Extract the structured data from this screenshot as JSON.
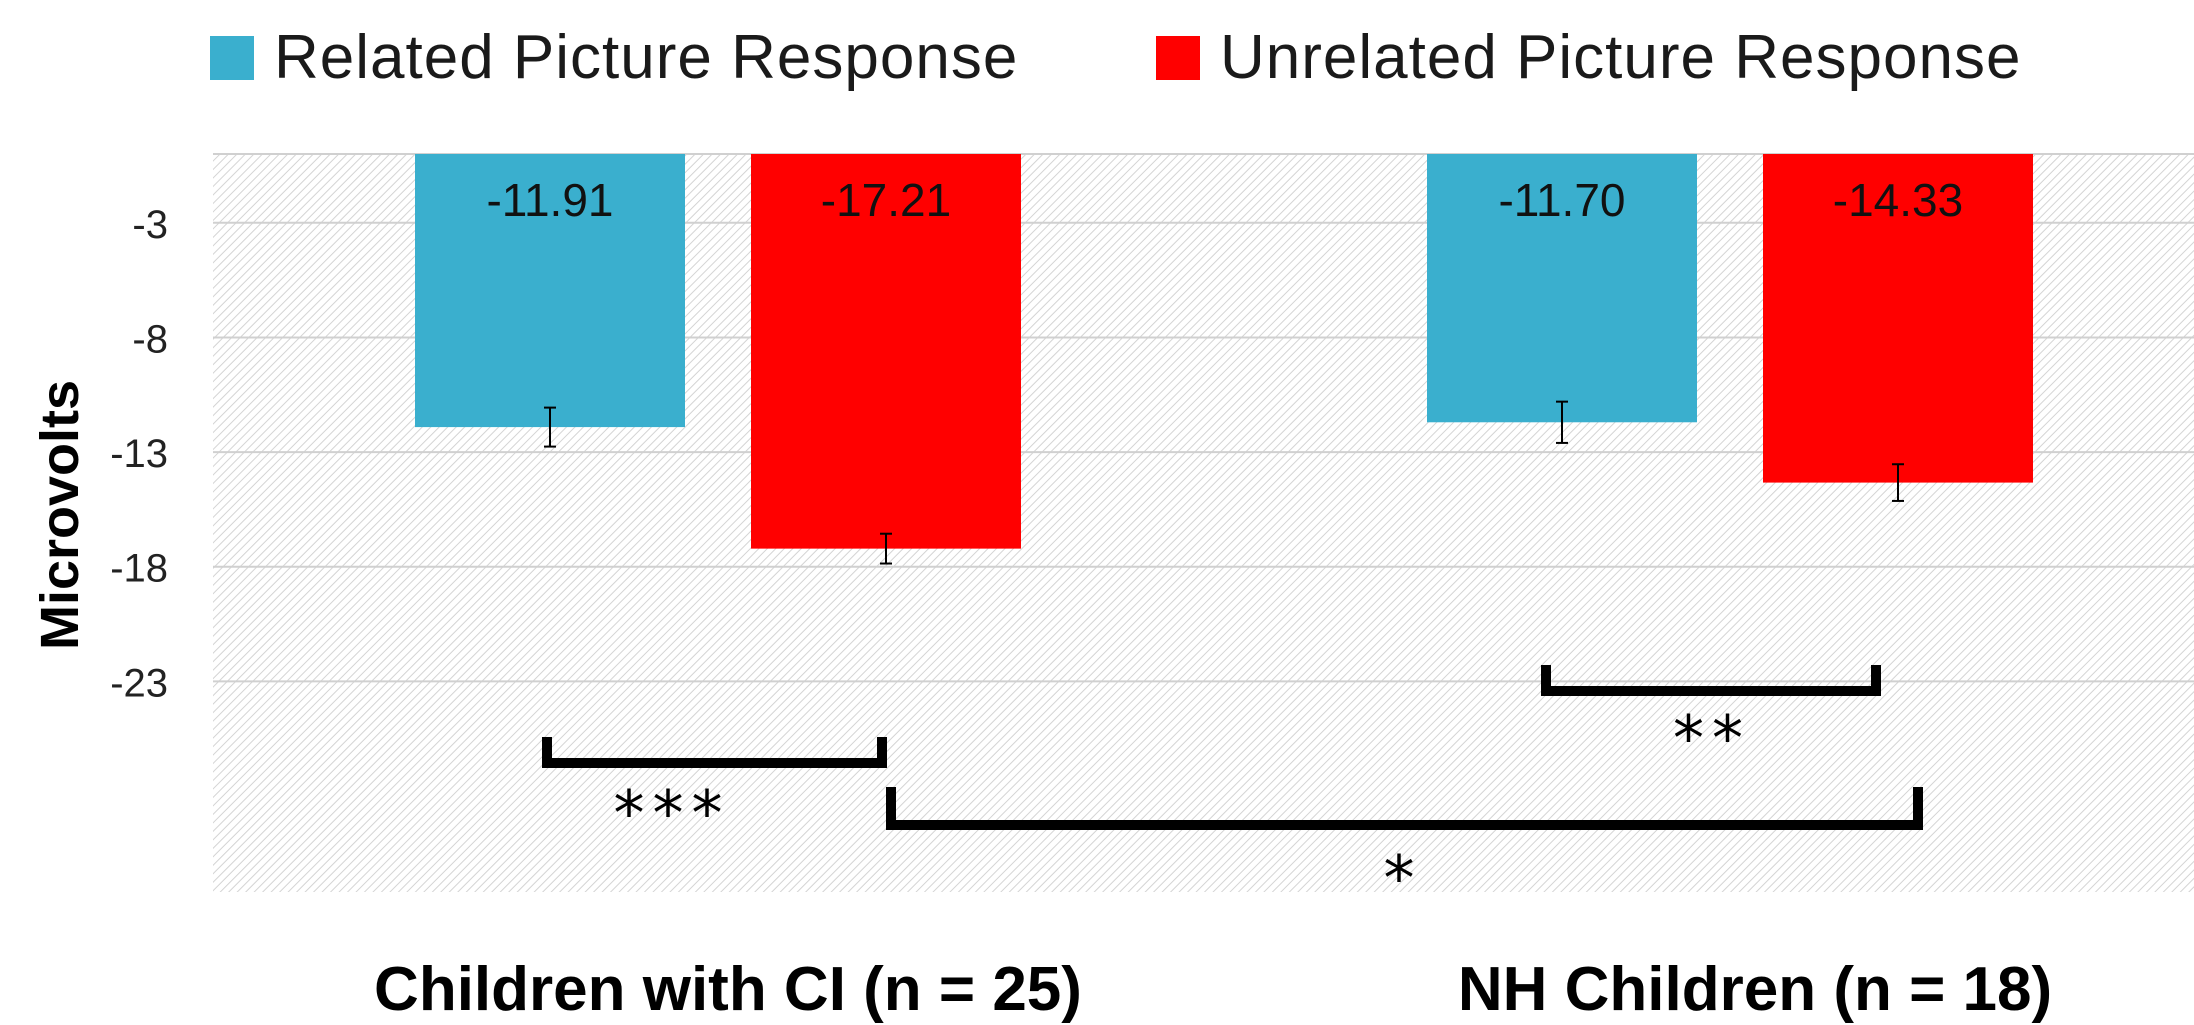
{
  "chart_data": {
    "type": "bar",
    "categories": [
      "Children with CI (n = 25)",
      "NH Children (n = 18)"
    ],
    "series": [
      {
        "name": "Related Picture Response",
        "color": "#3AAFCE",
        "values": [
          -11.91,
          -11.7
        ],
        "value_labels": [
          "-11.91",
          "-11.70"
        ],
        "error": [
          0.85,
          0.9
        ]
      },
      {
        "name": "Unrelated Picture Response",
        "color": "#FF0000",
        "values": [
          -17.21,
          -14.33
        ],
        "value_labels": [
          "-17.21",
          "-14.33"
        ],
        "error": [
          0.65,
          0.8
        ]
      }
    ],
    "ylabel": "Microvolts",
    "yticks": [
      -3,
      -8,
      -13,
      -18,
      -23
    ],
    "ylim": [
      -23,
      0
    ],
    "grid": true,
    "legend_position": "top",
    "significance": [
      {
        "label": "***",
        "between": "Children with CI related vs unrelated"
      },
      {
        "label": "**",
        "between": "NH Children related vs unrelated"
      },
      {
        "label": "*",
        "between": "Children with CI unrelated vs NH Children unrelated"
      }
    ]
  }
}
